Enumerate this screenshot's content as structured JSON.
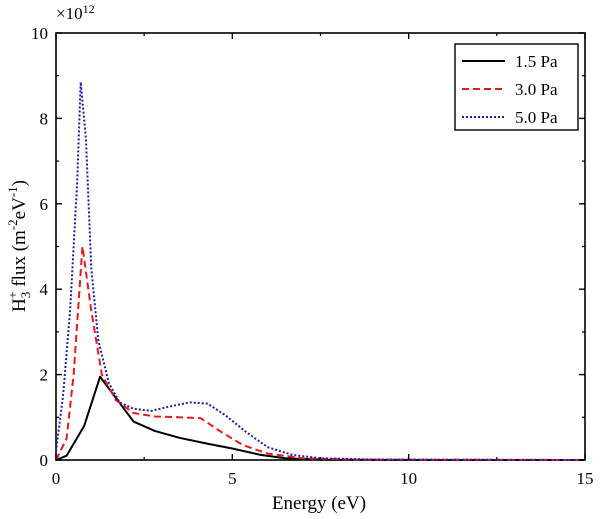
{
  "chart_data": {
    "type": "line",
    "xlabel": "Energy (eV)",
    "ylabel": {
      "main": "H",
      "sub": "3",
      "sup": "+",
      "rest": " flux (m",
      "exp1": "-2",
      "mid": "eV",
      "exp2": "-1",
      "end": ")"
    },
    "y_multiplier": {
      "prefix": "×10",
      "exponent": "12"
    },
    "xlim": [
      0,
      15
    ],
    "ylim": [
      0,
      10
    ],
    "xticks": [
      0,
      5,
      10,
      15
    ],
    "yticks": [
      0,
      2,
      4,
      6,
      8,
      10
    ],
    "xtick_labels": [
      "0",
      "5",
      "10",
      "15"
    ],
    "ytick_labels": [
      "0",
      "2",
      "4",
      "6",
      "8",
      "10"
    ],
    "grid": false,
    "legend_position": "top-right",
    "series": [
      {
        "name": "1.5 Pa",
        "color": "#000000",
        "dash": "solid",
        "points": [
          [
            0,
            0
          ],
          [
            0.3,
            0.1
          ],
          [
            0.8,
            0.8
          ],
          [
            1.25,
            1.95
          ],
          [
            1.7,
            1.45
          ],
          [
            2.2,
            0.9
          ],
          [
            2.8,
            0.68
          ],
          [
            3.5,
            0.52
          ],
          [
            4.3,
            0.38
          ],
          [
            5.0,
            0.27
          ],
          [
            5.8,
            0.12
          ],
          [
            6.5,
            0.04
          ],
          [
            7.5,
            0.01
          ],
          [
            10,
            0
          ],
          [
            15,
            0
          ]
        ]
      },
      {
        "name": "3.0 Pa",
        "color": "#e8191c",
        "dash": "dashed",
        "points": [
          [
            0,
            0
          ],
          [
            0.3,
            0.5
          ],
          [
            0.5,
            2.0
          ],
          [
            0.75,
            5.0
          ],
          [
            1.0,
            3.5
          ],
          [
            1.3,
            2.0
          ],
          [
            1.7,
            1.4
          ],
          [
            2.2,
            1.1
          ],
          [
            2.8,
            1.02
          ],
          [
            3.5,
            1.0
          ],
          [
            4.1,
            0.98
          ],
          [
            4.7,
            0.65
          ],
          [
            5.3,
            0.35
          ],
          [
            6.0,
            0.15
          ],
          [
            7.0,
            0.04
          ],
          [
            8.5,
            0.01
          ],
          [
            15,
            0
          ]
        ]
      },
      {
        "name": "5.0 Pa",
        "color": "#1c1cb4",
        "dash": "dotted",
        "points": [
          [
            0,
            0.2
          ],
          [
            0.2,
            1.5
          ],
          [
            0.4,
            3.5
          ],
          [
            0.6,
            6.5
          ],
          [
            0.7,
            8.85
          ],
          [
            0.85,
            7.5
          ],
          [
            1.0,
            4.5
          ],
          [
            1.2,
            2.8
          ],
          [
            1.5,
            1.8
          ],
          [
            1.8,
            1.35
          ],
          [
            2.2,
            1.2
          ],
          [
            2.7,
            1.15
          ],
          [
            3.2,
            1.25
          ],
          [
            3.8,
            1.35
          ],
          [
            4.3,
            1.32
          ],
          [
            4.8,
            1.05
          ],
          [
            5.4,
            0.65
          ],
          [
            6.0,
            0.3
          ],
          [
            6.7,
            0.12
          ],
          [
            7.5,
            0.04
          ],
          [
            9,
            0.01
          ],
          [
            15,
            0
          ]
        ]
      }
    ]
  }
}
